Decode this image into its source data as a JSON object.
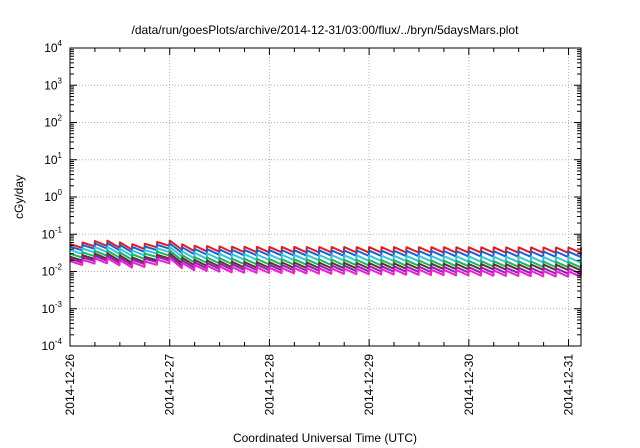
{
  "chart_data": {
    "type": "line",
    "title": "/data/run/goesPlots/archive/2014-12-31/03:00/flux/../bryn/5daysMars.plot",
    "xlabel": "Coordinated Universal Time (UTC)",
    "ylabel": "cGy/day",
    "y_scale": "log",
    "ylim": [
      0.0001,
      10000
    ],
    "xlim": [
      "2014-12-26 00:00",
      "2014-12-31 03:00"
    ],
    "grid": true,
    "legend": "none",
    "y_ticks": [
      {
        "base": "10",
        "exp": "-4",
        "value": 0.0001
      },
      {
        "base": "10",
        "exp": "-3",
        "value": 0.001
      },
      {
        "base": "10",
        "exp": "-2",
        "value": 0.01
      },
      {
        "base": "10",
        "exp": "-1",
        "value": 0.1
      },
      {
        "base": "10",
        "exp": "0",
        "value": 1
      },
      {
        "base": "10",
        "exp": "1",
        "value": 10
      },
      {
        "base": "10",
        "exp": "2",
        "value": 100
      },
      {
        "base": "10",
        "exp": "3",
        "value": 1000
      },
      {
        "base": "10",
        "exp": "4",
        "value": 10000
      }
    ],
    "x_ticks": [
      {
        "label": "2014-12-26",
        "value": "2014-12-26 00:00"
      },
      {
        "label": "2014-12-27",
        "value": "2014-12-27 00:00"
      },
      {
        "label": "2014-12-28",
        "value": "2014-12-28 00:00"
      },
      {
        "label": "2014-12-29",
        "value": "2014-12-29 00:00"
      },
      {
        "label": "2014-12-30",
        "value": "2014-12-30 00:00"
      },
      {
        "label": "2014-12-31",
        "value": "2014-12-31 00:00"
      }
    ],
    "sawtooth_period_hours": 3,
    "series": [
      {
        "color": "#e41a1c",
        "profile": [
          [
            0,
            0.055
          ],
          [
            8,
            0.07
          ],
          [
            16,
            0.052
          ],
          [
            21,
            0.062
          ],
          [
            24,
            0.068
          ],
          [
            28,
            0.05
          ],
          [
            40,
            0.046
          ],
          [
            123,
            0.044
          ]
        ],
        "drop": 0.72
      },
      {
        "color": "#1f5fd6",
        "profile": [
          [
            0,
            0.047
          ],
          [
            8,
            0.06
          ],
          [
            16,
            0.044
          ],
          [
            21,
            0.052
          ],
          [
            24,
            0.057
          ],
          [
            28,
            0.041
          ],
          [
            40,
            0.038
          ],
          [
            123,
            0.034
          ]
        ],
        "drop": 0.72
      },
      {
        "color": "#34c6d6",
        "profile": [
          [
            0,
            0.038
          ],
          [
            8,
            0.048
          ],
          [
            16,
            0.035
          ],
          [
            21,
            0.042
          ],
          [
            24,
            0.046
          ],
          [
            28,
            0.032
          ],
          [
            40,
            0.029
          ],
          [
            123,
            0.024
          ]
        ],
        "drop": 0.72
      },
      {
        "color": "#1eb366",
        "profile": [
          [
            0,
            0.03
          ],
          [
            8,
            0.038
          ],
          [
            16,
            0.028
          ],
          [
            21,
            0.034
          ],
          [
            24,
            0.037
          ],
          [
            28,
            0.025
          ],
          [
            40,
            0.022
          ],
          [
            123,
            0.018
          ]
        ],
        "drop": 0.72
      },
      {
        "color": "#5a3a1a",
        "profile": [
          [
            0,
            0.025
          ],
          [
            8,
            0.032
          ],
          [
            16,
            0.023
          ],
          [
            21,
            0.028
          ],
          [
            24,
            0.031
          ],
          [
            28,
            0.021
          ],
          [
            40,
            0.018
          ],
          [
            123,
            0.015
          ]
        ],
        "drop": 0.72
      },
      {
        "color": "#8a1fc2",
        "profile": [
          [
            0,
            0.022
          ],
          [
            8,
            0.028
          ],
          [
            16,
            0.02
          ],
          [
            21,
            0.025
          ],
          [
            24,
            0.027
          ],
          [
            28,
            0.018
          ],
          [
            40,
            0.0155
          ],
          [
            123,
            0.012
          ]
        ],
        "drop": 0.72
      },
      {
        "color": "#f01ecc",
        "profile": [
          [
            0,
            0.019
          ],
          [
            8,
            0.024
          ],
          [
            16,
            0.017
          ],
          [
            21,
            0.021
          ],
          [
            24,
            0.023
          ],
          [
            28,
            0.0155
          ],
          [
            40,
            0.013
          ],
          [
            123,
            0.01
          ]
        ],
        "drop": 0.72
      }
    ]
  }
}
